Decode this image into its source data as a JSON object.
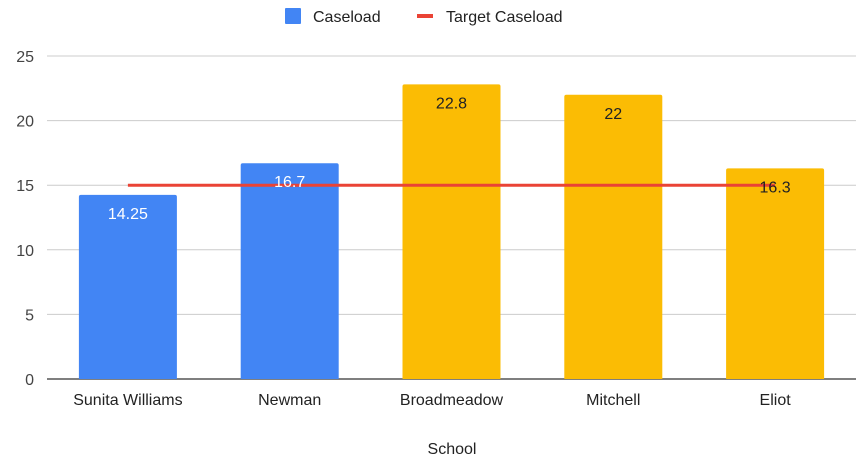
{
  "chart_data": {
    "type": "bar",
    "title": "",
    "xlabel": "School",
    "ylabel": "",
    "ylim": [
      0,
      25
    ],
    "yticks": [
      0,
      5,
      10,
      15,
      20,
      25
    ],
    "grid": true,
    "legend_position": "top",
    "categories": [
      "Sunita Williams",
      "Newman",
      "Broadmeadow",
      "Mitchell",
      "Eliot"
    ],
    "series": [
      {
        "name": "Caseload",
        "type": "bar",
        "values": [
          14.25,
          16.7,
          22.8,
          22,
          16.3
        ],
        "data_labels": [
          "14.25",
          "16.7",
          "22.8",
          "22",
          "16.3"
        ],
        "color": "#4285f4",
        "point_colors": [
          "#4285f4",
          "#4285f4",
          "#fbbc04",
          "#fbbc04",
          "#fbbc04"
        ],
        "label_colors": [
          "#ffffff",
          "#ffffff",
          "#202124",
          "#202124",
          "#202124"
        ]
      },
      {
        "name": "Target Caseload",
        "type": "line",
        "values": [
          15,
          15,
          15,
          15,
          15
        ],
        "color": "#ea4335"
      }
    ]
  }
}
